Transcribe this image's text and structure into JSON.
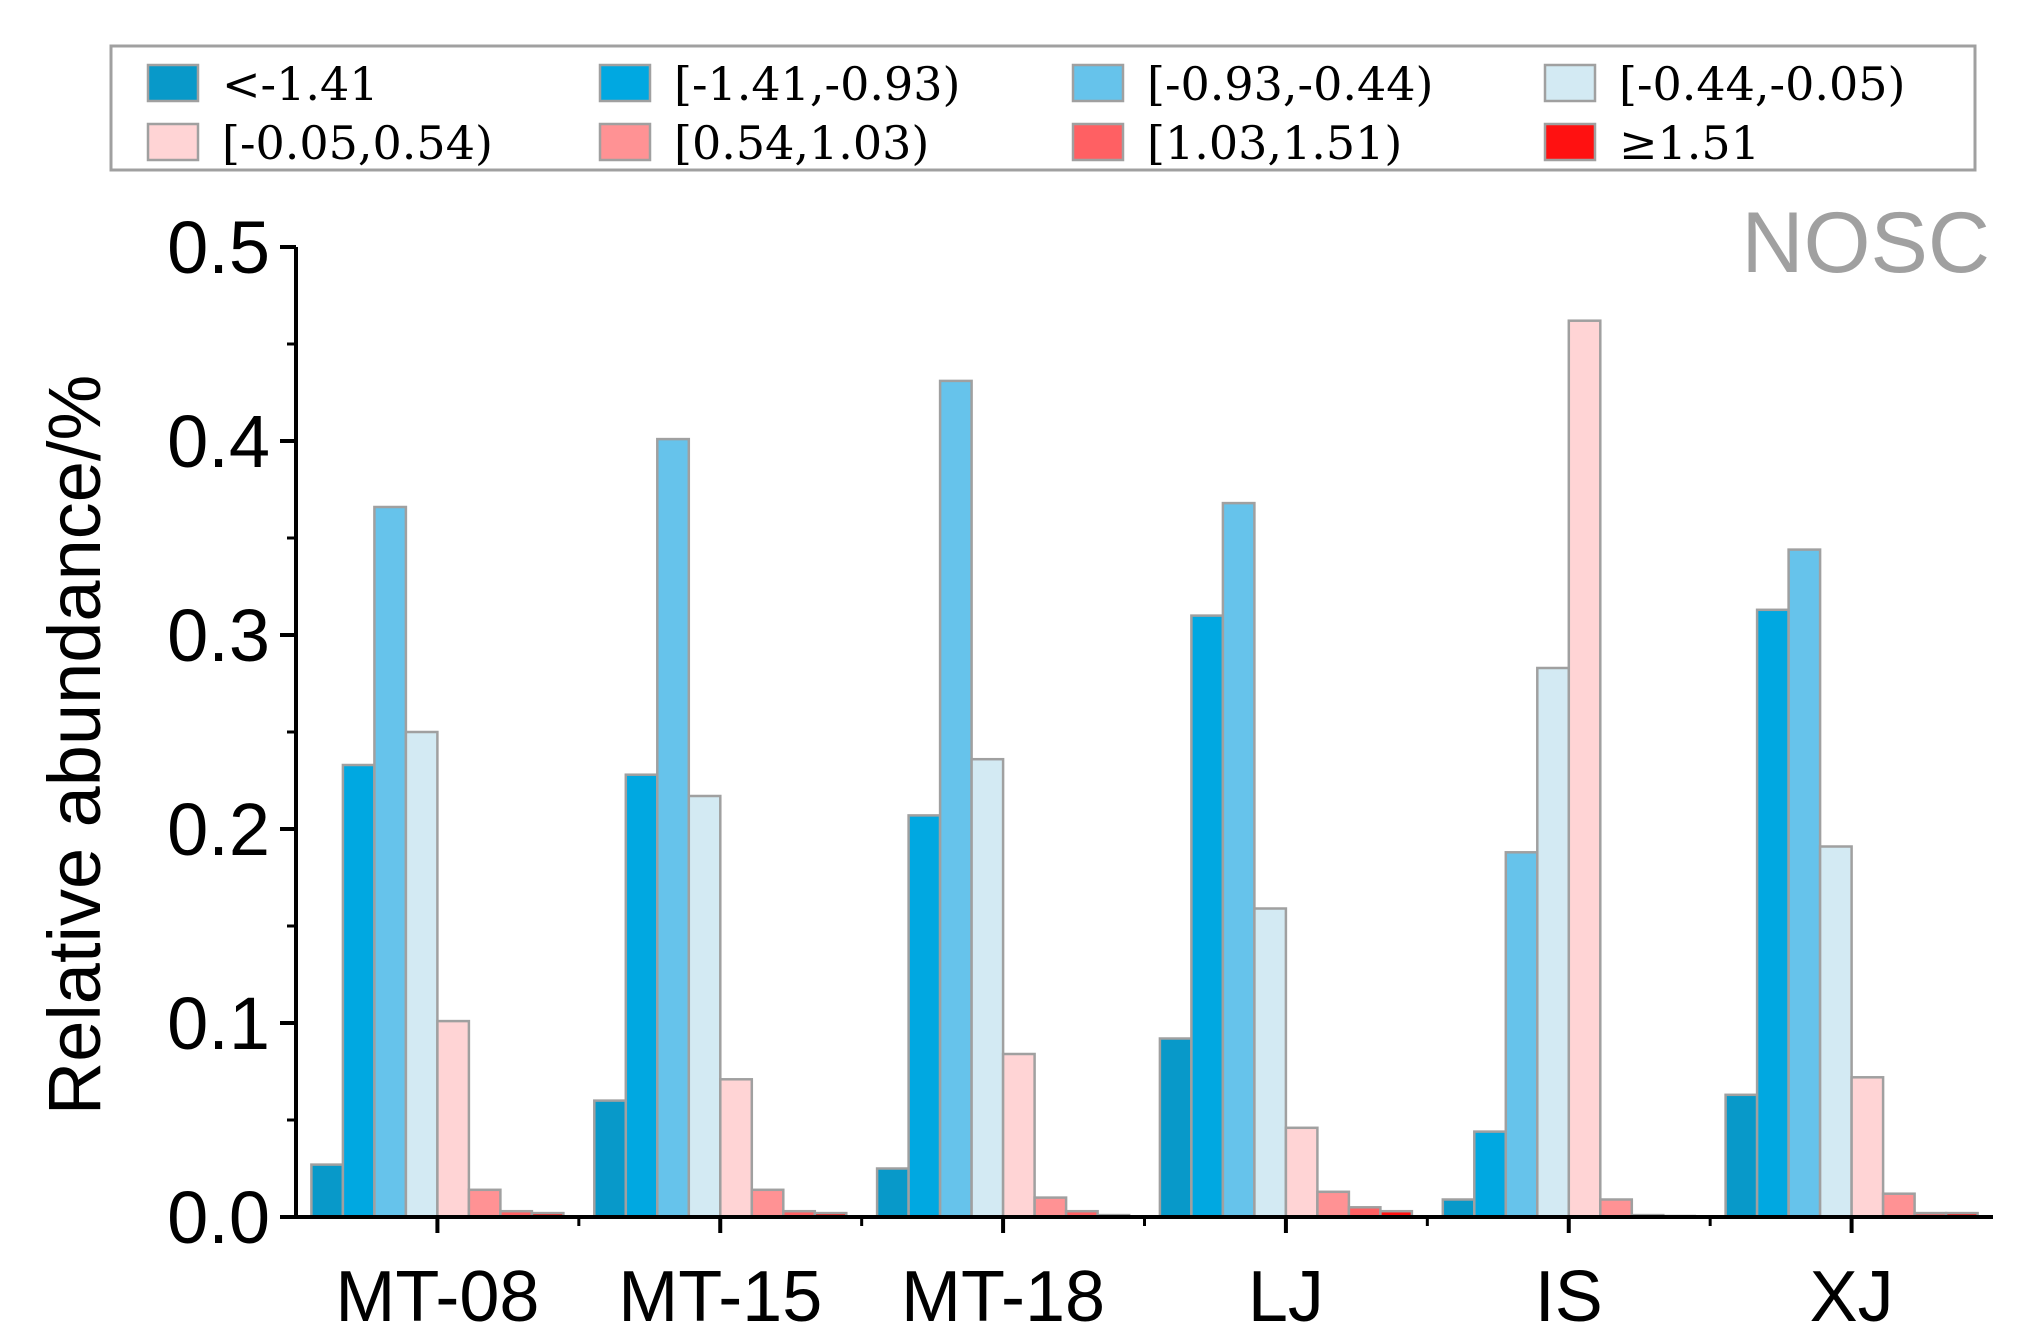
{
  "chart_data": {
    "type": "bar",
    "title": "",
    "annotation": "NOSC",
    "xlabel": "",
    "ylabel": "Relative abundance/%",
    "ylim": [
      0,
      0.5
    ],
    "yticks": [
      "0.0",
      "0.1",
      "0.2",
      "0.3",
      "0.4",
      "0.5"
    ],
    "grid": false,
    "legend_position": "top",
    "categories": [
      "MT-08",
      "MT-15",
      "MT-18",
      "LJ",
      "IS",
      "XJ"
    ],
    "series": [
      {
        "name": "<-1.41",
        "color": "#0899c9",
        "values": [
          0.027,
          0.06,
          0.025,
          0.092,
          0.009,
          0.063
        ]
      },
      {
        "name": "[-1.41,-0.93)",
        "color": "#00a8e1",
        "values": [
          0.233,
          0.228,
          0.207,
          0.31,
          0.044,
          0.313
        ]
      },
      {
        "name": "[-0.93,-0.44)",
        "color": "#66c3eb",
        "values": [
          0.366,
          0.401,
          0.431,
          0.368,
          0.188,
          0.344
        ]
      },
      {
        "name": "[-0.44,-0.05)",
        "color": "#d3eaf3",
        "values": [
          0.25,
          0.217,
          0.236,
          0.159,
          0.283,
          0.191
        ]
      },
      {
        "name": "[-0.05,0.54)",
        "color": "#ffd4d5",
        "values": [
          0.101,
          0.071,
          0.084,
          0.046,
          0.462,
          0.072
        ]
      },
      {
        "name": "[0.54,1.03)",
        "color": "#ff9294",
        "values": [
          0.014,
          0.014,
          0.01,
          0.013,
          0.009,
          0.012
        ]
      },
      {
        "name": "[1.03,1.51)",
        "color": "#ff6063",
        "values": [
          0.003,
          0.003,
          0.003,
          0.005,
          0.001,
          0.002
        ]
      },
      {
        "name": "≥1.51",
        "color": "#ff1111",
        "values": [
          0.002,
          0.002,
          0.001,
          0.003,
          0.0005,
          0.002
        ]
      }
    ]
  }
}
